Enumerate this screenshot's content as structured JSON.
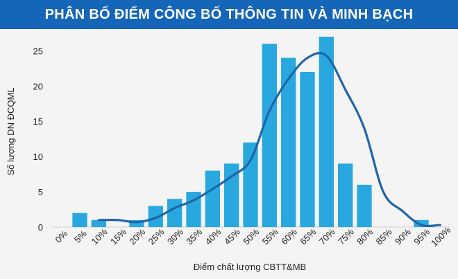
{
  "chart_data": {
    "type": "bar",
    "title": "PHÂN BỐ ĐIỂM CÔNG BỐ THÔNG TIN VÀ MINH BẠCH",
    "xlabel": "Điểm chất lượng CBTT&MB",
    "ylabel": "Số lượng DN ĐCQML",
    "categories": [
      "0%",
      "5%",
      "10%",
      "15%",
      "20%",
      "25%",
      "30%",
      "35%",
      "40%",
      "45%",
      "50%",
      "55%",
      "60%",
      "65%",
      "70%",
      "75%",
      "80%",
      "85%",
      "90%",
      "95%",
      "100%"
    ],
    "series": [
      {
        "type": "bar",
        "values": [
          0,
          2,
          1,
          0,
          1,
          3,
          4,
          5,
          8,
          9,
          12,
          26,
          24,
          22,
          27,
          9,
          6,
          0,
          0,
          1,
          0
        ]
      },
      {
        "type": "line",
        "values": [
          null,
          null,
          1,
          1,
          0.7,
          1.3,
          2.7,
          3.8,
          5.4,
          7.2,
          9.5,
          16.5,
          21,
          24,
          24.3,
          19.5,
          14,
          5,
          2.3,
          0.3,
          0.3
        ]
      }
    ],
    "yticks": [
      0,
      5,
      10,
      15,
      20,
      25
    ],
    "ylim": [
      0,
      27
    ],
    "colors": {
      "bar": "#29a8e0",
      "line": "#1f64a8",
      "banner": "#1565b8"
    },
    "grid": false,
    "legend": "none"
  }
}
